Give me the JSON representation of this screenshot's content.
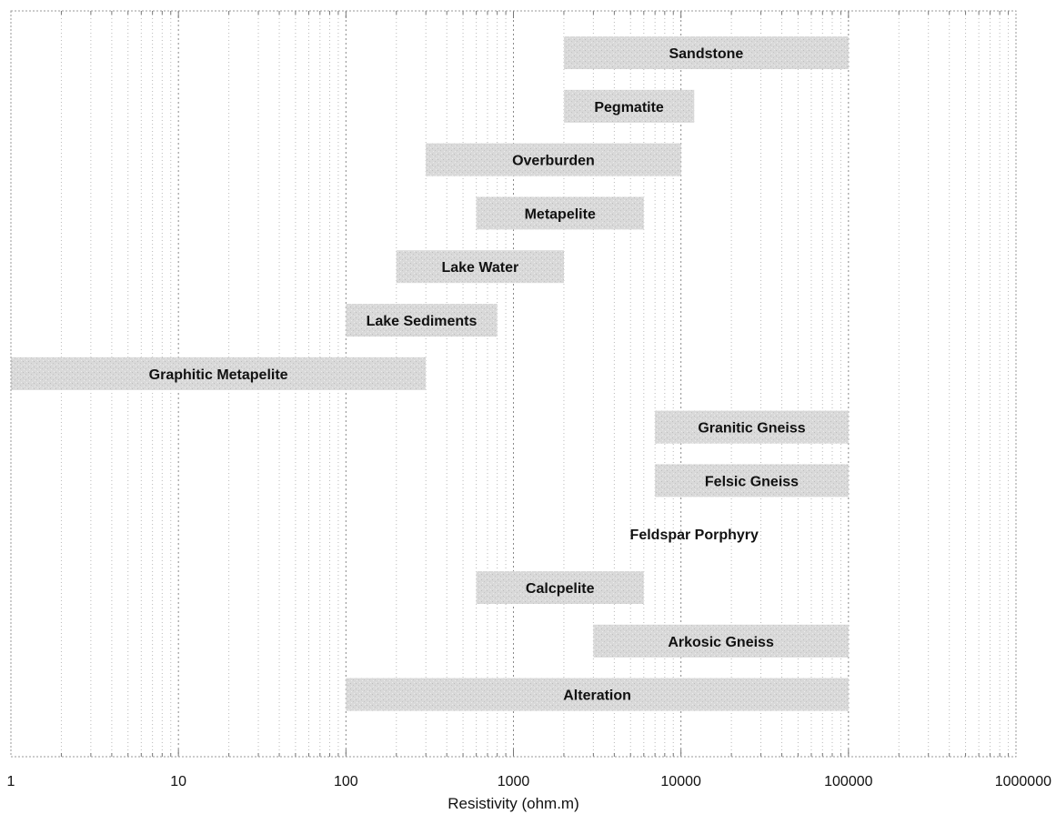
{
  "chart_data": {
    "type": "bar",
    "subtype": "horizontal-range",
    "title": "",
    "xlabel": "Resistivity (ohm.m)",
    "ylabel": "",
    "xscale": "log",
    "xlim": [
      1,
      1000000
    ],
    "x_tick_labels": [
      "1",
      "10",
      "100",
      "1000",
      "10000",
      "100000",
      "1000000"
    ],
    "grid": true,
    "bar_color": "#d2d2d2",
    "categories": [
      "Sandstone",
      "Pegmatite",
      "Overburden",
      "Metapelite",
      "Lake Water",
      "Lake Sediments",
      "Graphitic Metapelite",
      "Granitic Gneiss",
      "Felsic Gneiss",
      "Feldspar Porphyry",
      "Calcpelite",
      "Arkosic Gneiss",
      "Alteration"
    ],
    "ranges": [
      [
        2000,
        100000
      ],
      [
        2000,
        12000
      ],
      [
        300,
        10000
      ],
      [
        600,
        6000
      ],
      [
        200,
        2000
      ],
      [
        100,
        800
      ],
      [
        1,
        300
      ],
      [
        7000,
        100000
      ],
      [
        7000,
        100000
      ],
      null,
      [
        600,
        6000
      ],
      [
        3000,
        100000
      ],
      [
        100,
        100000
      ]
    ]
  }
}
